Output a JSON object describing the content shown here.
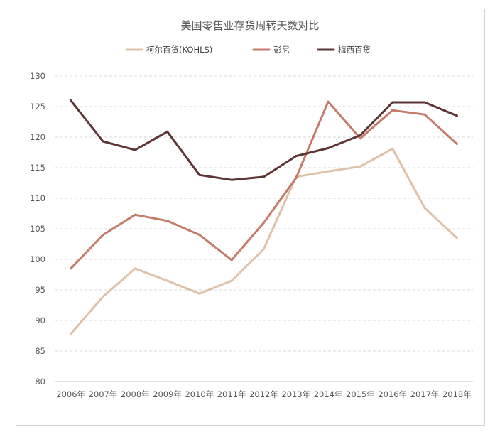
{
  "chart_data": {
    "type": "line",
    "title": "美国零售业存货周转天数对比",
    "categories": [
      "2006年",
      "2007年",
      "2008年",
      "2009年",
      "2010年",
      "2011年",
      "2012年",
      "2013年",
      "2014年",
      "2015年",
      "2016年",
      "2017年",
      "2018年"
    ],
    "ylim": [
      80,
      130
    ],
    "y_ticks": [
      "80",
      "85",
      "90",
      "95",
      "100",
      "105",
      "110",
      "115",
      "120",
      "125",
      "130"
    ],
    "grid": true,
    "legend_position": "top",
    "series": [
      {
        "name": "柯尔百货(KOHLS)",
        "color": "#dfc1a8",
        "values": [
          87.8,
          93.9,
          98.5,
          96.5,
          94.4,
          96.5,
          101.7,
          113.5,
          114.4,
          115.2,
          118.1,
          108.4,
          103.5
        ]
      },
      {
        "name": "彭尼",
        "color": "#c47b68",
        "values": [
          98.5,
          104.0,
          107.3,
          106.3,
          104.0,
          99.9,
          106.0,
          113.3,
          125.8,
          119.8,
          124.4,
          123.7,
          118.9
        ]
      },
      {
        "name": "梅西百货",
        "color": "#5e3434",
        "values": [
          126.0,
          119.3,
          117.9,
          120.9,
          113.8,
          113.0,
          113.5,
          116.9,
          118.2,
          120.3,
          125.7,
          125.7,
          123.5
        ]
      }
    ]
  }
}
